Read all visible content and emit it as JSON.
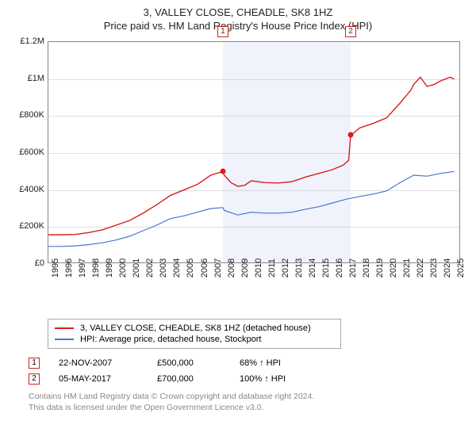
{
  "title_line1": "3, VALLEY CLOSE, CHEADLE, SK8 1HZ",
  "title_line2": "Price paid vs. HM Land Registry's House Price Index (HPI)",
  "chart": {
    "type": "line",
    "background_color": "#ffffff",
    "grid_color": "#cccccc",
    "border_color": "#888888",
    "x_years": [
      1995,
      1996,
      1997,
      1998,
      1999,
      2000,
      2001,
      2002,
      2003,
      2004,
      2005,
      2006,
      2007,
      2008,
      2009,
      2010,
      2011,
      2012,
      2013,
      2014,
      2015,
      2016,
      2017,
      2018,
      2019,
      2020,
      2021,
      2022,
      2023,
      2024,
      2025
    ],
    "xlim": [
      1995,
      2025.5
    ],
    "ylim": [
      0,
      1200000
    ],
    "ytick_step": 200000,
    "ytick_labels": [
      "£0",
      "£200K",
      "£400K",
      "£600K",
      "£800K",
      "£1M",
      "£1.2M"
    ],
    "shade_band": {
      "start_year": 2007.9,
      "end_year": 2017.35,
      "color": "#f0f3fb"
    },
    "series": [
      {
        "label": "3, VALLEY CLOSE, CHEADLE, SK8 1HZ (detached house)",
        "color": "#d81e1e",
        "line_width": 1.4,
        "points": [
          [
            1995,
            158000
          ],
          [
            1996,
            158000
          ],
          [
            1997,
            160000
          ],
          [
            1998,
            170000
          ],
          [
            1999,
            185000
          ],
          [
            2000,
            210000
          ],
          [
            2001,
            235000
          ],
          [
            2002,
            275000
          ],
          [
            2003,
            320000
          ],
          [
            2004,
            370000
          ],
          [
            2005,
            400000
          ],
          [
            2006,
            430000
          ],
          [
            2007,
            480000
          ],
          [
            2007.9,
            500000
          ],
          [
            2008,
            480000
          ],
          [
            2008.5,
            440000
          ],
          [
            2009,
            420000
          ],
          [
            2009.5,
            425000
          ],
          [
            2010,
            450000
          ],
          [
            2011,
            440000
          ],
          [
            2012,
            438000
          ],
          [
            2013,
            445000
          ],
          [
            2014,
            470000
          ],
          [
            2015,
            490000
          ],
          [
            2016,
            510000
          ],
          [
            2016.8,
            535000
          ],
          [
            2017.2,
            560000
          ],
          [
            2017.35,
            700000
          ],
          [
            2017.6,
            710000
          ],
          [
            2018,
            735000
          ],
          [
            2019,
            760000
          ],
          [
            2020,
            790000
          ],
          [
            2021,
            870000
          ],
          [
            2021.8,
            940000
          ],
          [
            2022,
            970000
          ],
          [
            2022.5,
            1010000
          ],
          [
            2023,
            960000
          ],
          [
            2023.5,
            970000
          ],
          [
            2024,
            990000
          ],
          [
            2024.7,
            1010000
          ],
          [
            2025,
            1000000
          ]
        ]
      },
      {
        "label": "HPI: Average price, detached house, Stockport",
        "color": "#4b74d6",
        "line_width": 1.2,
        "points": [
          [
            1995,
            95000
          ],
          [
            1996,
            95000
          ],
          [
            1997,
            98000
          ],
          [
            1998,
            105000
          ],
          [
            1999,
            115000
          ],
          [
            2000,
            130000
          ],
          [
            2001,
            150000
          ],
          [
            2002,
            180000
          ],
          [
            2003,
            210000
          ],
          [
            2004,
            245000
          ],
          [
            2005,
            260000
          ],
          [
            2006,
            280000
          ],
          [
            2007,
            300000
          ],
          [
            2007.9,
            305000
          ],
          [
            2008,
            290000
          ],
          [
            2009,
            265000
          ],
          [
            2010,
            280000
          ],
          [
            2011,
            275000
          ],
          [
            2012,
            275000
          ],
          [
            2013,
            280000
          ],
          [
            2014,
            296000
          ],
          [
            2015,
            310000
          ],
          [
            2016,
            330000
          ],
          [
            2017,
            350000
          ],
          [
            2018,
            365000
          ],
          [
            2019,
            378000
          ],
          [
            2020,
            395000
          ],
          [
            2021,
            440000
          ],
          [
            2022,
            480000
          ],
          [
            2023,
            475000
          ],
          [
            2024,
            490000
          ],
          [
            2025,
            500000
          ]
        ]
      }
    ],
    "markers": [
      {
        "n": "1",
        "year": 2007.9,
        "price": 500000,
        "box_color": "#d81e1e"
      },
      {
        "n": "2",
        "year": 2017.35,
        "price": 700000,
        "box_color": "#d81e1e"
      }
    ]
  },
  "legend": {
    "row1": "3, VALLEY CLOSE, CHEADLE, SK8 1HZ (detached house)",
    "row2": "HPI: Average price, detached house, Stockport"
  },
  "events": [
    {
      "n": "1",
      "date": "22-NOV-2007",
      "price": "£500,000",
      "pct": "68% ↑ HPI",
      "box_color": "#d81e1e"
    },
    {
      "n": "2",
      "date": "05-MAY-2017",
      "price": "£700,000",
      "pct": "100% ↑ HPI",
      "box_color": "#d81e1e"
    }
  ],
  "footer": {
    "line1": "Contains HM Land Registry data © Crown copyright and database right 2024.",
    "line2": "This data is licensed under the Open Government Licence v3.0."
  },
  "colors": {
    "series1": "#d81e1e",
    "series2": "#4b74d6"
  }
}
